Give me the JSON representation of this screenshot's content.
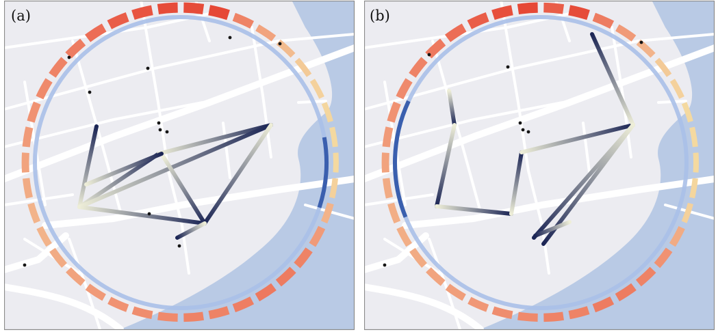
{
  "panels": [
    {
      "id": "a",
      "label": "(a)"
    },
    {
      "id": "b",
      "label": "(b)"
    }
  ],
  "colors": {
    "map_background": "#ececf1",
    "road": "#ffffff",
    "water": "#b4c7e3",
    "inner_ring": "#aac0e8",
    "ring_highlight": "#3a5fae",
    "path_dark": "#1b2555",
    "path_light": "#eeeed8",
    "dot": "#151515",
    "panel_border": "#8a8a8a",
    "heat_low": "#f4d9a0",
    "heat_high": "#e33a2a"
  }
}
